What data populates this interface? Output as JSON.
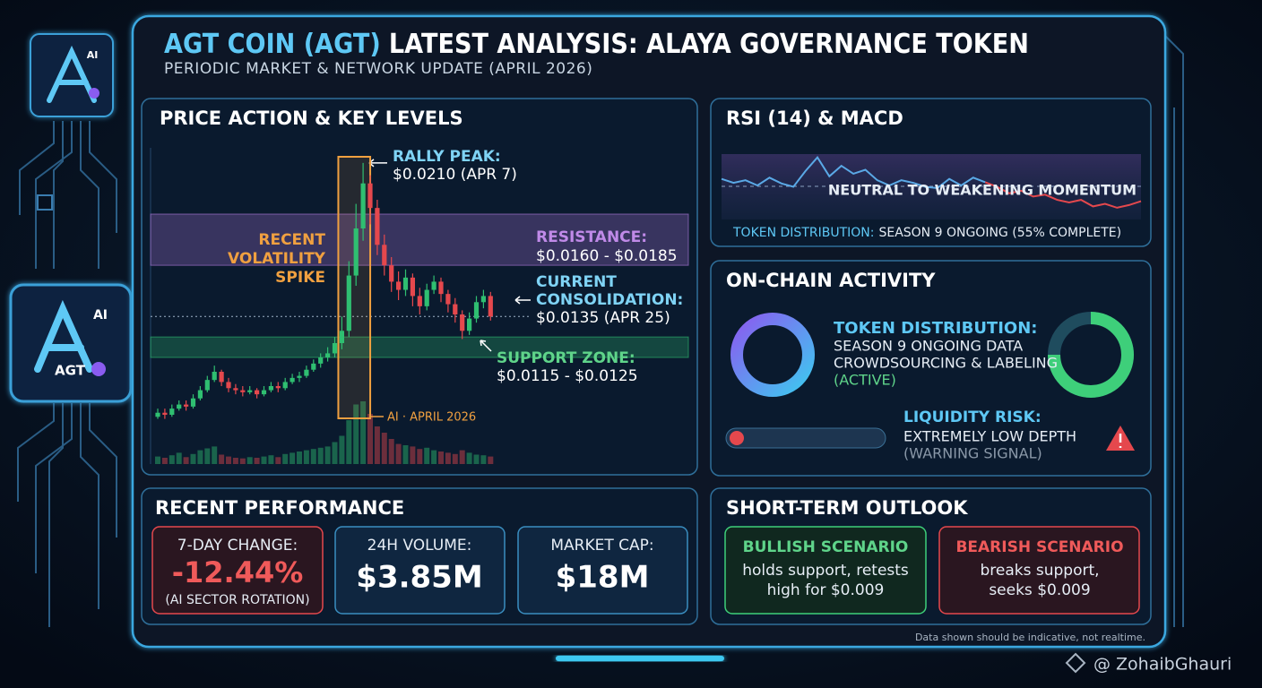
{
  "header": {
    "title_highlight": "AGT COIN (AGT)",
    "title_rest": "LATEST ANALYSIS: ALAYA GOVERNANCE TOKEN",
    "subtitle": "PERIODIC MARKET & NETWORK UPDATE (APRIL 2026)"
  },
  "logos": {
    "small_badge": "AI",
    "main_badge": "AI",
    "main_label": "AGT"
  },
  "price_panel": {
    "heading": "PRICE ACTION & KEY LEVELS",
    "chart": {
      "type": "candlestick",
      "up_color": "#2fbf71",
      "down_color": "#e5484d",
      "ylim": [
        0.008,
        0.022
      ],
      "open": [
        0.0086,
        0.0088,
        0.0087,
        0.009,
        0.0092,
        0.0091,
        0.0095,
        0.0099,
        0.0104,
        0.0108,
        0.0103,
        0.01,
        0.0099,
        0.0098,
        0.0099,
        0.0097,
        0.0099,
        0.0101,
        0.01,
        0.0103,
        0.0105,
        0.0106,
        0.0109,
        0.0112,
        0.0115,
        0.0117,
        0.0122,
        0.0128,
        0.0155,
        0.0178,
        0.02,
        0.0188,
        0.017,
        0.016,
        0.0152,
        0.0148,
        0.0154,
        0.0145,
        0.014,
        0.0148,
        0.0152,
        0.0146,
        0.0141,
        0.0136,
        0.0128,
        0.0134,
        0.0142,
        0.0145
      ],
      "high": [
        0.009,
        0.009,
        0.0092,
        0.0094,
        0.0094,
        0.0097,
        0.0101,
        0.0106,
        0.0111,
        0.0109,
        0.0105,
        0.0102,
        0.0101,
        0.0101,
        0.01,
        0.0101,
        0.0103,
        0.0103,
        0.0105,
        0.0107,
        0.0108,
        0.0111,
        0.0114,
        0.0117,
        0.012,
        0.0125,
        0.0135,
        0.0162,
        0.019,
        0.021,
        0.0204,
        0.0192,
        0.0175,
        0.0164,
        0.0157,
        0.0158,
        0.0156,
        0.0149,
        0.0151,
        0.0155,
        0.0154,
        0.0148,
        0.0144,
        0.0138,
        0.0137,
        0.0145,
        0.0148,
        0.0147
      ],
      "low": [
        0.0085,
        0.0085,
        0.0086,
        0.0089,
        0.0089,
        0.009,
        0.0094,
        0.0098,
        0.0103,
        0.0101,
        0.0098,
        0.0097,
        0.0096,
        0.0097,
        0.0095,
        0.0096,
        0.0098,
        0.0098,
        0.0099,
        0.0102,
        0.0103,
        0.0105,
        0.0108,
        0.011,
        0.0113,
        0.0115,
        0.0119,
        0.0125,
        0.015,
        0.0172,
        0.018,
        0.0165,
        0.0155,
        0.0147,
        0.0143,
        0.0145,
        0.014,
        0.0136,
        0.0138,
        0.0146,
        0.0142,
        0.0137,
        0.0132,
        0.0124,
        0.0126,
        0.0132,
        0.0139,
        0.0133
      ],
      "close": [
        0.0088,
        0.0087,
        0.009,
        0.0092,
        0.0091,
        0.0095,
        0.0099,
        0.0104,
        0.0108,
        0.0103,
        0.01,
        0.0099,
        0.0098,
        0.0099,
        0.0097,
        0.0099,
        0.0101,
        0.01,
        0.0103,
        0.0105,
        0.0106,
        0.0109,
        0.0112,
        0.0115,
        0.0117,
        0.0122,
        0.0128,
        0.0155,
        0.0178,
        0.02,
        0.0188,
        0.017,
        0.016,
        0.0152,
        0.0148,
        0.0154,
        0.0145,
        0.014,
        0.0148,
        0.0152,
        0.0146,
        0.0141,
        0.0136,
        0.0128,
        0.0134,
        0.0142,
        0.0145,
        0.0135
      ],
      "volume": [
        12,
        10,
        14,
        18,
        11,
        16,
        22,
        25,
        28,
        15,
        12,
        10,
        9,
        11,
        10,
        12,
        14,
        11,
        16,
        18,
        20,
        22,
        24,
        26,
        28,
        35,
        45,
        70,
        95,
        100,
        80,
        60,
        50,
        40,
        32,
        30,
        28,
        24,
        26,
        22,
        20,
        18,
        16,
        22,
        18,
        15,
        14,
        12
      ],
      "volume_ylim": [
        0,
        100
      ]
    },
    "rally_peak": {
      "label": "RALLY PEAK:",
      "value_label": "$0.0210 (APR 7)",
      "value": 0.021
    },
    "volatility": {
      "lines": [
        "RECENT",
        "VOLATILITY",
        "SPIKE"
      ]
    },
    "resistance": {
      "label": "RESISTANCE:",
      "value_label": "$0.0160 - $0.0185",
      "low": 0.016,
      "high": 0.0185,
      "color": "#b07be0"
    },
    "current": {
      "lines": [
        "CURRENT",
        "CONSOLIDATION:"
      ],
      "value_label": "$0.0135 (APR 25)",
      "value": 0.0135
    },
    "support": {
      "label": "SUPPORT ZONE:",
      "value_label": "$0.0115 - $0.0125",
      "low": 0.0115,
      "high": 0.0125,
      "color": "#2fbf71"
    },
    "stamp": "AI · APRIL 2026"
  },
  "rsi_panel": {
    "heading": "RSI (14) & MACD",
    "chart": {
      "type": "line",
      "ylim": [
        0,
        100
      ],
      "series": [
        {
          "color": "#5aa9e6",
          "values": [
            62,
            56,
            60,
            52,
            64,
            55,
            50,
            74,
            95,
            66,
            82,
            70,
            76,
            60,
            52,
            60,
            56,
            50,
            48,
            62,
            52,
            64,
            57,
            null,
            null,
            null,
            null,
            null,
            null,
            null,
            null,
            null,
            null,
            null,
            null,
            null
          ]
        },
        {
          "color": "#e5484d",
          "values": [
            null,
            null,
            null,
            null,
            null,
            null,
            null,
            null,
            null,
            null,
            null,
            null,
            null,
            null,
            null,
            null,
            null,
            null,
            null,
            null,
            null,
            null,
            57,
            50,
            40,
            44,
            35,
            38,
            30,
            26,
            30,
            20,
            24,
            18,
            22,
            28
          ]
        }
      ]
    },
    "momentum": "NEUTRAL TO WEAKENING MOMENTUM",
    "distribution_label": "TOKEN DISTRIBUTION:",
    "distribution_text": "SEASON 9 ONGOING (55% COMPLETE)"
  },
  "onchain_panel": {
    "heading": "ON-CHAIN ACTIVITY",
    "distribution_label": "TOKEN DISTRIBUTION:",
    "distribution_lines": [
      "SEASON 9 ONGOING DATA",
      "CROWDSOURCING & LABELING"
    ],
    "distribution_status": "(ACTIVE)",
    "liquidity_label": "LIQUIDITY RISK:",
    "liquidity_text": "EXTREMELY LOW DEPTH",
    "liquidity_note": "(WARNING SIGNAL)"
  },
  "performance_panel": {
    "heading": "RECENT PERFORMANCE",
    "cards": [
      {
        "label": "7-DAY CHANGE:",
        "value": "-12.44%",
        "note": "(AI SECTOR ROTATION)"
      },
      {
        "label": "24H VOLUME:",
        "value": "$3.85M"
      },
      {
        "label": "MARKET CAP:",
        "value": "$18M"
      }
    ]
  },
  "outlook_panel": {
    "heading": "SHORT-TERM OUTLOOK",
    "bullish": {
      "title": "BULLISH SCENARIO",
      "lines": [
        "holds support, retests",
        "high for $0.009"
      ]
    },
    "bearish": {
      "title": "BEARISH SCENARIO",
      "lines": [
        "breaks support,",
        "seeks $0.009"
      ]
    }
  },
  "footnote": "Data shown should be indicative, not realtime.",
  "watermark": "@ ZohaibGhauri"
}
